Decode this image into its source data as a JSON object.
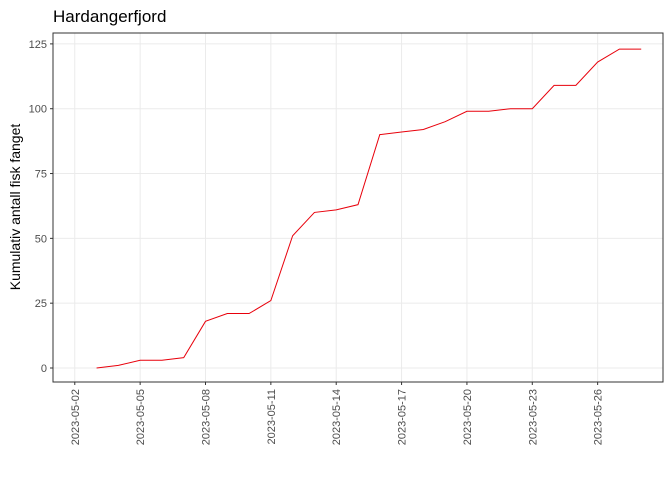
{
  "chart_data": {
    "type": "line",
    "title": "Hardangerfjord",
    "y_label": "Kumulativ antall fisk fanget",
    "x": [
      "2023-05-03",
      "2023-05-04",
      "2023-05-05",
      "2023-05-06",
      "2023-05-07",
      "2023-05-08",
      "2023-05-09",
      "2023-05-10",
      "2023-05-11",
      "2023-05-12",
      "2023-05-13",
      "2023-05-14",
      "2023-05-15",
      "2023-05-16",
      "2023-05-17",
      "2023-05-18",
      "2023-05-19",
      "2023-05-20",
      "2023-05-21",
      "2023-05-22",
      "2023-05-23",
      "2023-05-24",
      "2023-05-25",
      "2023-05-26",
      "2023-05-27",
      "2023-05-28"
    ],
    "series": [
      {
        "name": "Hardangerfjord",
        "color": "#e8000b",
        "values": [
          0,
          1,
          3,
          3,
          4,
          18,
          21,
          21,
          26,
          51,
          60,
          61,
          63,
          90,
          91,
          92,
          95,
          99,
          99,
          100,
          100,
          109,
          109,
          118,
          123,
          123
        ]
      }
    ],
    "xlim": [
      "2023-05-01",
      "2023-05-29"
    ],
    "xticks": [
      "2023-05-02",
      "2023-05-05",
      "2023-05-08",
      "2023-05-11",
      "2023-05-14",
      "2023-05-17",
      "2023-05-20",
      "2023-05-23",
      "2023-05-26"
    ],
    "ylim": [
      -5.4,
      129.2
    ],
    "yticks": [
      0,
      25,
      50,
      75,
      100,
      125
    ],
    "grid": true
  }
}
